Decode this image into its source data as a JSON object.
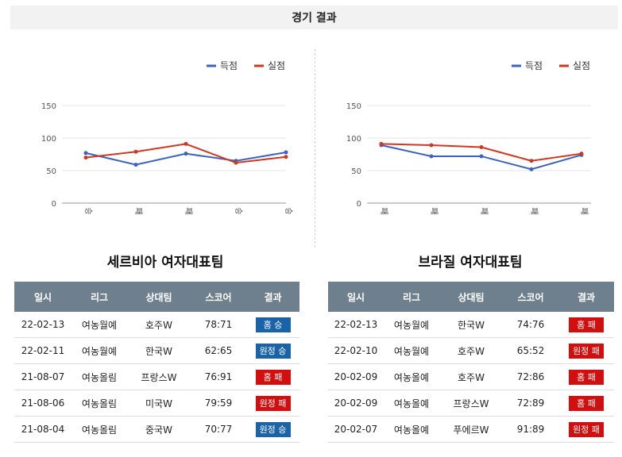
{
  "section_title": "경기 결과",
  "legend": {
    "scored": "득점",
    "conceded": "실점"
  },
  "colors": {
    "scored": "#3a62c2",
    "conceded": "#d3361f",
    "win": "#1b63a8",
    "lose": "#d20f0f"
  },
  "table_headers": [
    "일시",
    "리그",
    "상대팀",
    "스코어",
    "결과"
  ],
  "teams": [
    {
      "name": "세르비아 여자대표팀",
      "chart_data": {
        "type": "line",
        "categories": [
          "승",
          "패",
          "패",
          "승",
          "승"
        ],
        "series": [
          {
            "name": "득점",
            "values": [
              77,
              59,
              76,
              65,
              78
            ]
          },
          {
            "name": "실점",
            "values": [
              70,
              79,
              91,
              62,
              71
            ]
          }
        ],
        "yticks": [
          0,
          50,
          100,
          150
        ],
        "ylim": [
          0,
          150
        ],
        "legend": "top-right",
        "grid": true
      },
      "rows": [
        {
          "date": "22-02-13",
          "league": "여농월예",
          "opponent": "호주W",
          "score": "78:71",
          "result": "홈 승",
          "outcome": "win"
        },
        {
          "date": "22-02-11",
          "league": "여농월예",
          "opponent": "한국W",
          "score": "62:65",
          "result": "원정 승",
          "outcome": "win"
        },
        {
          "date": "21-08-07",
          "league": "여농올림",
          "opponent": "프랑스W",
          "score": "76:91",
          "result": "홈 패",
          "outcome": "lose"
        },
        {
          "date": "21-08-06",
          "league": "여농올림",
          "opponent": "미국W",
          "score": "79:59",
          "result": "원정 패",
          "outcome": "lose"
        },
        {
          "date": "21-08-04",
          "league": "여농올림",
          "opponent": "중국W",
          "score": "70:77",
          "result": "원정 승",
          "outcome": "win"
        }
      ]
    },
    {
      "name": "브라질 여자대표팀",
      "chart_data": {
        "type": "line",
        "categories": [
          "패",
          "패",
          "패",
          "패",
          "패"
        ],
        "series": [
          {
            "name": "득점",
            "values": [
              89,
              72,
              72,
              52,
              74
            ]
          },
          {
            "name": "실점",
            "values": [
              91,
              89,
              86,
              65,
              76
            ]
          }
        ],
        "yticks": [
          0,
          50,
          100,
          150
        ],
        "ylim": [
          0,
          150
        ],
        "legend": "top-right",
        "grid": true
      },
      "rows": [
        {
          "date": "22-02-13",
          "league": "여농월예",
          "opponent": "한국W",
          "score": "74:76",
          "result": "홈 패",
          "outcome": "lose"
        },
        {
          "date": "22-02-10",
          "league": "여농월예",
          "opponent": "호주W",
          "score": "65:52",
          "result": "원정 패",
          "outcome": "lose"
        },
        {
          "date": "20-02-09",
          "league": "여농올예",
          "opponent": "호주W",
          "score": "72:86",
          "result": "홈 패",
          "outcome": "lose"
        },
        {
          "date": "20-02-09",
          "league": "여농올예",
          "opponent": "프랑스W",
          "score": "72:89",
          "result": "홈 패",
          "outcome": "lose"
        },
        {
          "date": "20-02-07",
          "league": "여농올예",
          "opponent": "푸에르W",
          "score": "91:89",
          "result": "원정 패",
          "outcome": "lose"
        }
      ]
    }
  ]
}
